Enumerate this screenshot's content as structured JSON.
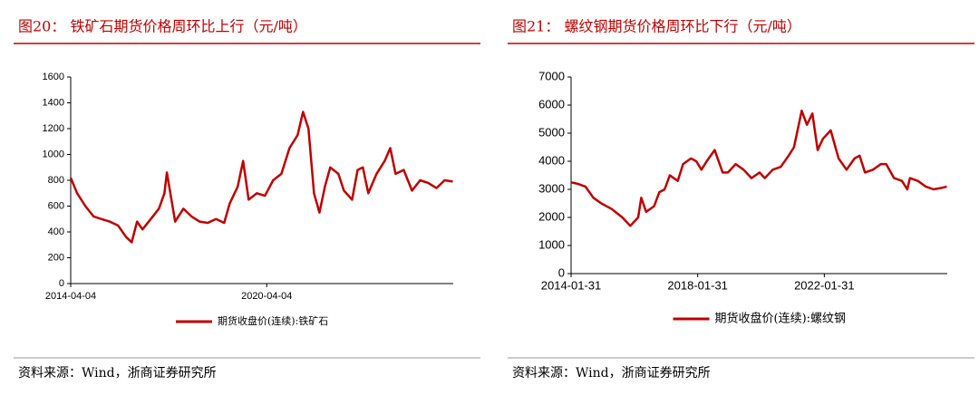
{
  "chart_data": [
    {
      "type": "line",
      "title": "图20： 铁矿石期货价格周环比上行（元/吨）",
      "source": "资料来源：Wind，浙商证券研究所",
      "xlim": [
        "2014-04-04",
        "2025-12-20"
      ],
      "xticks": [
        "2014-04-04",
        "2020-04-04"
      ],
      "ylim": [
        0,
        1600
      ],
      "yticks": [
        0,
        200,
        400,
        600,
        800,
        1000,
        1200,
        1400,
        1600
      ],
      "x": [
        "2014-04-04",
        "2014-06-15",
        "2014-09-15",
        "2014-12-15",
        "2015-03-15",
        "2015-06-15",
        "2015-09-15",
        "2015-12-15",
        "2016-02-15",
        "2016-04-15",
        "2016-06-15",
        "2016-09-15",
        "2016-12-15",
        "2017-02-15",
        "2017-03-15",
        "2017-06-15",
        "2017-09-15",
        "2017-12-15",
        "2018-03-15",
        "2018-06-15",
        "2018-09-15",
        "2018-12-15",
        "2019-02-15",
        "2019-05-15",
        "2019-07-15",
        "2019-09-15",
        "2019-12-15",
        "2020-03-15",
        "2020-06-15",
        "2020-09-15",
        "2020-12-15",
        "2021-03-15",
        "2021-05-15",
        "2021-07-15",
        "2021-09-15",
        "2021-11-15",
        "2022-01-15",
        "2022-03-15",
        "2022-06-15",
        "2022-08-15",
        "2022-11-15",
        "2023-01-15",
        "2023-03-15",
        "2023-05-15",
        "2023-08-15",
        "2023-11-15",
        "2024-01-15",
        "2024-03-15",
        "2024-06-15",
        "2024-09-15",
        "2024-12-15",
        "2025-03-15",
        "2025-06-15",
        "2025-09-15",
        "2025-12-15"
      ],
      "series": [
        {
          "name": "期货收盘价(连续):铁矿石",
          "color": "#c00000",
          "values": [
            820,
            700,
            600,
            520,
            500,
            480,
            450,
            360,
            320,
            480,
            420,
            500,
            580,
            700,
            860,
            480,
            580,
            520,
            480,
            470,
            500,
            470,
            620,
            750,
            950,
            650,
            700,
            680,
            800,
            850,
            1050,
            1150,
            1330,
            1200,
            700,
            550,
            750,
            900,
            850,
            720,
            650,
            880,
            900,
            700,
            850,
            950,
            1050,
            850,
            880,
            720,
            800,
            780,
            740,
            800,
            790
          ]
        }
      ]
    },
    {
      "type": "line",
      "title": "图21： 螺纹钢期货价格周环比下行（元/吨）",
      "source": "资料来源：Wind，浙商证券研究所",
      "xlim": [
        "2014-01-31",
        "2025-12-20"
      ],
      "xticks": [
        "2014-01-31",
        "2018-01-31",
        "2022-01-31"
      ],
      "ylim": [
        0,
        7000
      ],
      "yticks": [
        0,
        1000,
        2000,
        3000,
        4000,
        5000,
        6000,
        7000
      ],
      "x": [
        "2014-01-31",
        "2014-04-15",
        "2014-07-15",
        "2014-10-15",
        "2015-01-15",
        "2015-05-15",
        "2015-09-15",
        "2015-12-15",
        "2016-03-15",
        "2016-04-20",
        "2016-06-15",
        "2016-09-15",
        "2016-11-15",
        "2017-01-15",
        "2017-03-15",
        "2017-06-15",
        "2017-08-15",
        "2017-11-15",
        "2018-01-15",
        "2018-03-15",
        "2018-05-15",
        "2018-08-15",
        "2018-11-15",
        "2019-01-15",
        "2019-04-15",
        "2019-07-15",
        "2019-10-15",
        "2020-01-15",
        "2020-03-15",
        "2020-06-15",
        "2020-09-15",
        "2020-12-15",
        "2021-02-15",
        "2021-05-15",
        "2021-07-15",
        "2021-09-15",
        "2021-11-15",
        "2022-01-15",
        "2022-04-15",
        "2022-07-15",
        "2022-10-15",
        "2023-01-15",
        "2023-03-15",
        "2023-05-15",
        "2023-08-15",
        "2023-11-15",
        "2024-01-15",
        "2024-04-15",
        "2024-07-15",
        "2024-09-15",
        "2024-10-15",
        "2025-01-15",
        "2025-04-15",
        "2025-07-15",
        "2025-10-15",
        "2025-12-15"
      ],
      "series": [
        {
          "name": "期货收盘价(连续):螺纹钢",
          "color": "#c00000",
          "values": [
            3250,
            3200,
            3100,
            2700,
            2500,
            2300,
            2000,
            1700,
            2000,
            2700,
            2200,
            2400,
            2900,
            3000,
            3500,
            3300,
            3900,
            4100,
            4000,
            3700,
            4000,
            4400,
            3600,
            3600,
            3900,
            3700,
            3400,
            3600,
            3400,
            3700,
            3800,
            4200,
            4500,
            5800,
            5300,
            5700,
            4400,
            4800,
            5100,
            4100,
            3700,
            4100,
            4200,
            3600,
            3700,
            3900,
            3900,
            3400,
            3300,
            3000,
            3400,
            3300,
            3100,
            3000,
            3050,
            3100
          ]
        }
      ]
    }
  ]
}
